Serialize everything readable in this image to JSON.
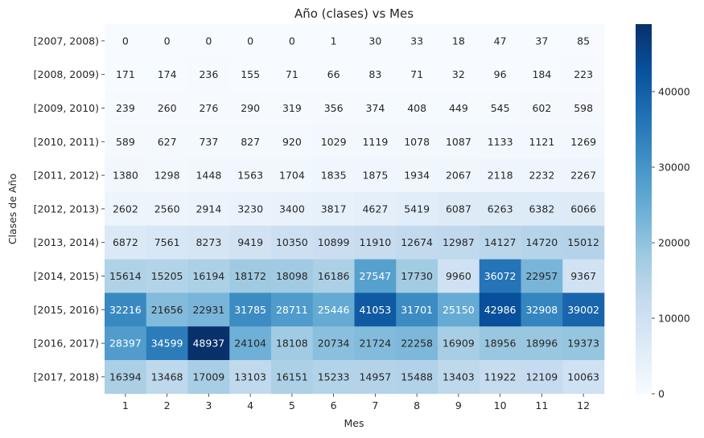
{
  "chart_data": {
    "type": "heatmap",
    "title": "Año (clases) vs Mes",
    "xlabel": "Mes",
    "ylabel": "Clases de Año",
    "x_categories": [
      "1",
      "2",
      "3",
      "4",
      "5",
      "6",
      "7",
      "8",
      "9",
      "10",
      "11",
      "12"
    ],
    "y_categories": [
      "[2007, 2008)",
      "[2008, 2009)",
      "[2009, 2010)",
      "[2010, 2011)",
      "[2011, 2012)",
      "[2012, 2013)",
      "[2013, 2014)",
      "[2014, 2015)",
      "[2015, 2016)",
      "[2016, 2017)",
      "[2017, 2018)"
    ],
    "values": [
      [
        0,
        0,
        0,
        0,
        0,
        1,
        30,
        33,
        18,
        47,
        37,
        85
      ],
      [
        171,
        174,
        236,
        155,
        71,
        66,
        83,
        71,
        32,
        96,
        184,
        223
      ],
      [
        239,
        260,
        276,
        290,
        319,
        356,
        374,
        408,
        449,
        545,
        602,
        598
      ],
      [
        589,
        627,
        737,
        827,
        920,
        1029,
        1119,
        1078,
        1087,
        1133,
        1121,
        1269
      ],
      [
        1380,
        1298,
        1448,
        1563,
        1704,
        1835,
        1875,
        1934,
        2067,
        2118,
        2232,
        2267
      ],
      [
        2602,
        2560,
        2914,
        3230,
        3400,
        3817,
        4627,
        5419,
        6087,
        6263,
        6382,
        6066
      ],
      [
        6872,
        7561,
        8273,
        9419,
        10350,
        10899,
        11910,
        12674,
        12987,
        14127,
        14720,
        15012
      ],
      [
        15614,
        15205,
        16194,
        18172,
        18098,
        16186,
        27547,
        17730,
        9960,
        36072,
        22957,
        9367
      ],
      [
        32216,
        21656,
        22931,
        31785,
        28711,
        25446,
        41053,
        31701,
        25150,
        42986,
        32908,
        39002
      ],
      [
        28397,
        34599,
        48937,
        24104,
        18108,
        20734,
        21724,
        22258,
        16909,
        18956,
        18996,
        19373
      ],
      [
        16394,
        13468,
        17009,
        13103,
        16151,
        15233,
        14957,
        15488,
        13403,
        11922,
        12109,
        10063
      ]
    ],
    "colormap": "Blues",
    "vmin": 0,
    "vmax": 48937,
    "colorbar_ticks": [
      0,
      10000,
      20000,
      30000,
      40000
    ]
  }
}
